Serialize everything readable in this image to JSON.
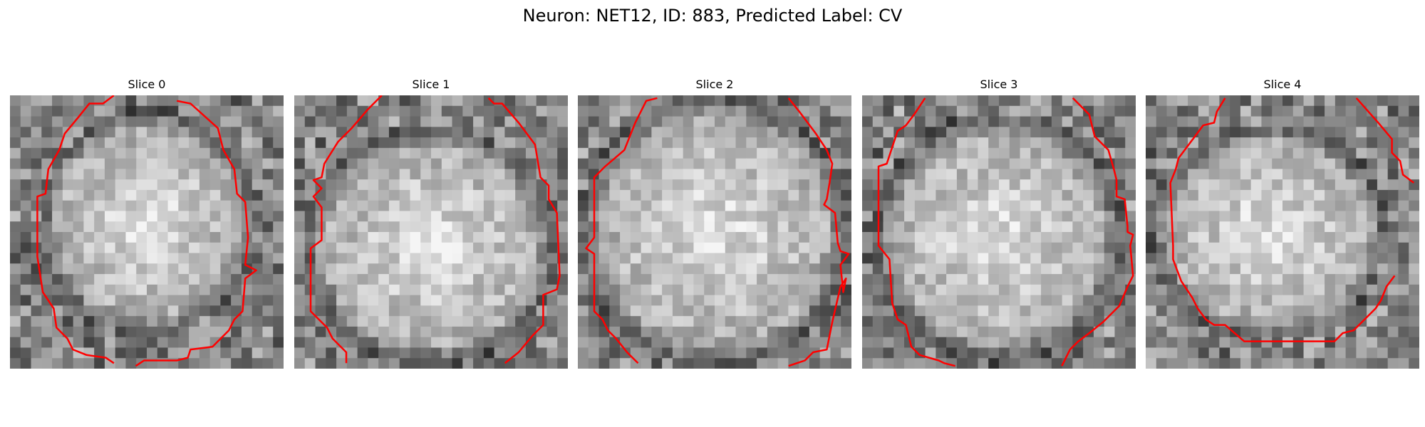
{
  "figure": {
    "title": "Neuron: NET12, ID: 883, Predicted Label: CV",
    "contour_color": "#ff0000",
    "colormap": "gray"
  },
  "slices": [
    {
      "title": "Slice 0"
    },
    {
      "title": "Slice 1"
    },
    {
      "title": "Slice 2"
    },
    {
      "title": "Slice 3"
    },
    {
      "title": "Slice 4"
    }
  ]
}
